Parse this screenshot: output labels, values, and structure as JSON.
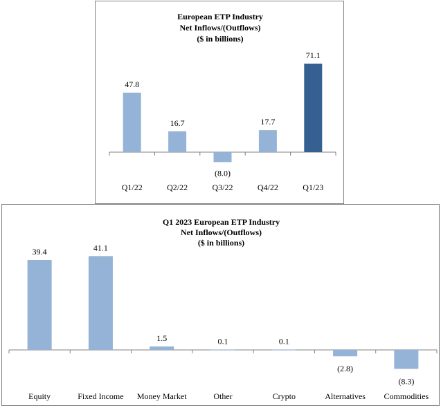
{
  "colors": {
    "bar": "#95b3d7",
    "highlight": "#366092",
    "axis": "#808080"
  },
  "chart_data": [
    {
      "type": "bar",
      "title": [
        "European ETP Industry",
        "Net Inflows/(Outflows)",
        "($ in billions)"
      ],
      "categories": [
        "Q1/22",
        "Q2/22",
        "Q3/22",
        "Q4/22",
        "Q1/23"
      ],
      "values": [
        47.8,
        16.7,
        -8.0,
        17.7,
        71.1
      ],
      "value_labels": [
        "47.8",
        "16.7",
        "(8.0)",
        "17.7",
        "71.1"
      ],
      "highlight_index": 4,
      "xlabel": "",
      "ylabel": "",
      "ylim": [
        -8.0,
        71.1
      ],
      "grid": false
    },
    {
      "type": "bar",
      "title": [
        "Q1 2023 European ETP Industry",
        "Net Inflows/(Outflows)",
        "($ in billions)"
      ],
      "categories": [
        "Equity",
        "Fixed Income",
        "Money Market",
        "Other",
        "Crypto",
        "Alternatives",
        "Commodities"
      ],
      "values": [
        39.4,
        41.1,
        1.5,
        0.1,
        0.1,
        -2.8,
        -8.3
      ],
      "value_labels": [
        "39.4",
        "41.1",
        "1.5",
        "0.1",
        "0.1",
        "(2.8)",
        "(8.3)"
      ],
      "highlight_index": -1,
      "xlabel": "",
      "ylabel": "",
      "ylim": [
        -8.3,
        41.1
      ],
      "grid": false
    }
  ]
}
